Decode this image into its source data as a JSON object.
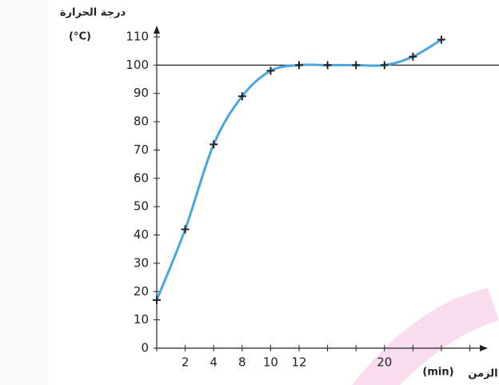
{
  "chart_data": {
    "type": "line",
    "y_label": "درجة الحرارة",
    "y_unit": "(°C)",
    "x_label": "الزمن",
    "x_unit": "(min)",
    "categories": [
      null,
      "2",
      "4",
      "8",
      "10",
      "12",
      null,
      null,
      "20",
      null,
      null
    ],
    "series": [
      {
        "color": "#4aa6dc",
        "values": [
          17,
          42,
          72,
          89,
          98,
          100,
          100,
          100,
          100,
          103,
          109
        ]
      }
    ],
    "ylim": [
      0,
      110
    ],
    "yticks": [
      0,
      10,
      20,
      30,
      40,
      50,
      60,
      70,
      80,
      90,
      100,
      110
    ],
    "reference_line": 100
  }
}
